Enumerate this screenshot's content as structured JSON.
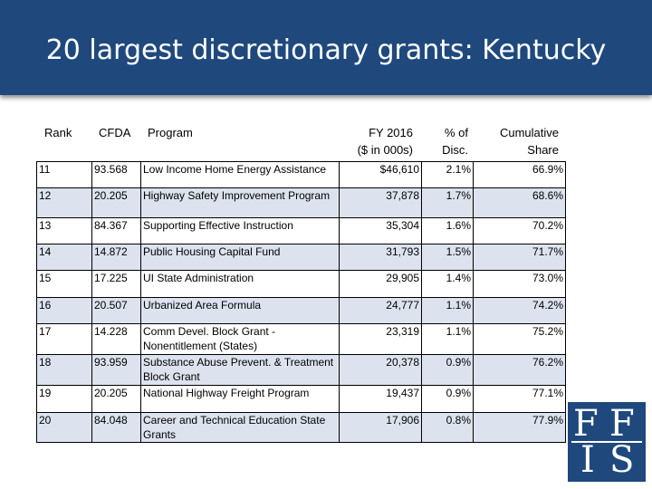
{
  "title": "20 largest discretionary grants: Kentucky",
  "headers": {
    "rank": "Rank",
    "cfda": "CFDA",
    "program": "Program",
    "fy_line1": "FY 2016",
    "fy_line2": "($ in 000s)",
    "pct_line1": "% of",
    "pct_line2": "Disc.",
    "cum_line1": "Cumulative",
    "cum_line2": "Share"
  },
  "rows": [
    {
      "rank": "11",
      "cfda": "93.568",
      "program": "Low Income Home Energy Assistance",
      "fy": "$46,610",
      "pct": "2.1%",
      "cum": "66.9%"
    },
    {
      "rank": "12",
      "cfda": "20.205",
      "program": "Highway Safety Improvement Program",
      "fy": "37,878",
      "pct": "1.7%",
      "cum": "68.6%"
    },
    {
      "rank": "13",
      "cfda": "84.367",
      "program": "Supporting Effective Instruction",
      "fy": "35,304",
      "pct": "1.6%",
      "cum": "70.2%"
    },
    {
      "rank": "14",
      "cfda": "14.872",
      "program": "Public Housing Capital Fund",
      "fy": "31,793",
      "pct": "1.5%",
      "cum": "71.7%"
    },
    {
      "rank": "15",
      "cfda": "17.225",
      "program": "UI State Administration",
      "fy": "29,905",
      "pct": "1.4%",
      "cum": "73.0%"
    },
    {
      "rank": "16",
      "cfda": "20.507",
      "program": "Urbanized Area Formula",
      "fy": "24,777",
      "pct": "1.1%",
      "cum": "74.2%"
    },
    {
      "rank": "17",
      "cfda": "14.228",
      "program": "Comm Devel. Block Grant - Nonentitlement (States)",
      "fy": "23,319",
      "pct": "1.1%",
      "cum": "75.2%"
    },
    {
      "rank": "18",
      "cfda": "93.959",
      "program": "Substance Abuse Prevent. & Treatment Block Grant",
      "fy": "20,378",
      "pct": "0.9%",
      "cum": "76.2%"
    },
    {
      "rank": "19",
      "cfda": "20.205",
      "program": "National Highway Freight Program",
      "fy": "19,437",
      "pct": "0.9%",
      "cum": "77.1%"
    },
    {
      "rank": "20",
      "cfda": "84.048",
      "program": "Career and Technical Education State Grants",
      "fy": "17,906",
      "pct": "0.8%",
      "cum": "77.9%"
    }
  ],
  "logo": {
    "letters": [
      "F",
      "F",
      "I",
      "S"
    ],
    "color": "#1f497d"
  }
}
